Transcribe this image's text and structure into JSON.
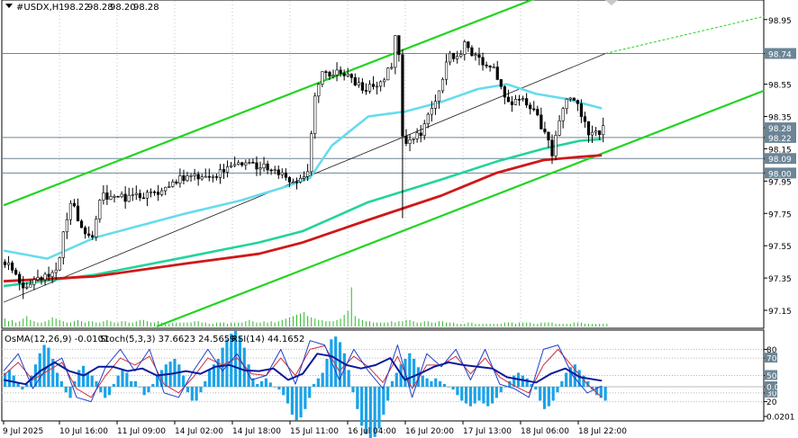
{
  "header": {
    "symbol": "#USDX,H1",
    "open": "98.22",
    "high": "98.28",
    "low": "98.20",
    "close": "98.28"
  },
  "indicator_header": {
    "osma": "OsMA(12,26,9) -0.0101",
    "stoch": "Stoch(5,3,3) 37.6623 24.5659",
    "rsi": "RSI(14) 44.1652"
  },
  "colors": {
    "channel": "#22d422",
    "ma_fast": "#66dbee",
    "ma_mid": "#22d49a",
    "ma_slow": "#d01818",
    "hist": "#1aa3e8",
    "stoch_main": "#1f3fc8",
    "stoch_signal": "#d0303c",
    "rsi": "#0a1a9a",
    "level_line": "#6b8596",
    "badge_bg": "#6b8596",
    "badge_text": "#ffffff"
  },
  "chart_data": {
    "type": "candlestick",
    "price_range": [
      97.05,
      99.06
    ],
    "price_ticks": [
      "98.95",
      "98.74",
      "98.55",
      "98.35",
      "98.28",
      "98.22",
      "98.15",
      "98.09",
      "98.00",
      "97.95",
      "97.75",
      "97.55",
      "97.35",
      "97.15"
    ],
    "price_badges": [
      "98.74",
      "98.28",
      "98.22",
      "98.09",
      "98.00"
    ],
    "level_lines": [
      98.74,
      98.22,
      98.09,
      98.0
    ],
    "time_labels": [
      "9 Jul 2025",
      "10 Jul 16:00",
      "11 Jul 09:00",
      "14 Jul 02:00",
      "14 Jul 18:00",
      "15 Jul 11:00",
      "16 Jul 04:00",
      "16 Jul 20:00",
      "17 Jul 13:00",
      "18 Jul 06:00",
      "18 Jul 22:00"
    ],
    "bars": 165,
    "close_path": [
      [
        0,
        97.45
      ],
      [
        5,
        97.31
      ],
      [
        10,
        97.34
      ],
      [
        14,
        97.38
      ],
      [
        16,
        97.62
      ],
      [
        18,
        97.82
      ],
      [
        21,
        97.68
      ],
      [
        24,
        97.58
      ],
      [
        26,
        97.85
      ],
      [
        30,
        97.86
      ],
      [
        34,
        97.84
      ],
      [
        38,
        97.86
      ],
      [
        42,
        97.86
      ],
      [
        46,
        97.95
      ],
      [
        50,
        97.97
      ],
      [
        54,
        97.98
      ],
      [
        58,
        97.99
      ],
      [
        62,
        98.07
      ],
      [
        66,
        98.06
      ],
      [
        70,
        98.04
      ],
      [
        74,
        98.01
      ],
      [
        78,
        97.96
      ],
      [
        80,
        97.93
      ],
      [
        83,
        97.99
      ],
      [
        85,
        98.5
      ],
      [
        87,
        98.62
      ],
      [
        90,
        98.62
      ],
      [
        94,
        98.6
      ],
      [
        98,
        98.52
      ],
      [
        102,
        98.55
      ],
      [
        106,
        98.65
      ],
      [
        107,
        98.85
      ],
      [
        108,
        98.72
      ],
      [
        109,
        98.25
      ],
      [
        110,
        98.2
      ],
      [
        112,
        98.22
      ],
      [
        114,
        98.24
      ],
      [
        118,
        98.45
      ],
      [
        122,
        98.75
      ],
      [
        124,
        98.7
      ],
      [
        126,
        98.8
      ],
      [
        130,
        98.7
      ],
      [
        134,
        98.65
      ],
      [
        138,
        98.42
      ],
      [
        142,
        98.45
      ],
      [
        145,
        98.38
      ],
      [
        148,
        98.25
      ],
      [
        150,
        98.12
      ],
      [
        152,
        98.3
      ],
      [
        154,
        98.47
      ],
      [
        156,
        98.45
      ],
      [
        158,
        98.36
      ],
      [
        160,
        98.25
      ],
      [
        162,
        98.24
      ],
      [
        164,
        98.28
      ]
    ],
    "moving_averages": [
      {
        "name": "fast",
        "values": [
          [
            0,
            97.52
          ],
          [
            12,
            97.47
          ],
          [
            25,
            97.6
          ],
          [
            50,
            97.75
          ],
          [
            65,
            97.83
          ],
          [
            78,
            97.92
          ],
          [
            84,
            97.97
          ],
          [
            90,
            98.17
          ],
          [
            100,
            98.35
          ],
          [
            110,
            98.38
          ],
          [
            120,
            98.44
          ],
          [
            130,
            98.52
          ],
          [
            138,
            98.55
          ],
          [
            146,
            98.49
          ],
          [
            154,
            98.46
          ],
          [
            164,
            98.4
          ]
        ]
      },
      {
        "name": "mid",
        "values": [
          [
            0,
            97.3
          ],
          [
            25,
            97.37
          ],
          [
            50,
            97.48
          ],
          [
            70,
            97.57
          ],
          [
            82,
            97.64
          ],
          [
            100,
            97.82
          ],
          [
            120,
            97.96
          ],
          [
            135,
            98.07
          ],
          [
            148,
            98.15
          ],
          [
            158,
            98.2
          ],
          [
            164,
            98.21
          ]
        ]
      },
      {
        "name": "slow",
        "values": [
          [
            0,
            97.33
          ],
          [
            25,
            97.36
          ],
          [
            50,
            97.44
          ],
          [
            70,
            97.5
          ],
          [
            82,
            97.57
          ],
          [
            100,
            97.71
          ],
          [
            120,
            97.86
          ],
          [
            135,
            98.0
          ],
          [
            148,
            98.08
          ],
          [
            158,
            98.1
          ],
          [
            164,
            98.11
          ]
        ]
      }
    ],
    "channel_lines": [
      {
        "name": "upper",
        "points": [
          [
            0,
            97.8
          ],
          [
            148,
            99.1
          ]
        ]
      },
      {
        "name": "lower",
        "points": [
          [
            42,
            97.05
          ],
          [
            213,
            98.55
          ]
        ]
      },
      {
        "name": "middle",
        "points": [
          [
            0,
            97.2
          ],
          [
            164,
            98.74
          ]
        ]
      }
    ],
    "oscillator_ticks": [
      "80",
      "70",
      "50",
      "30",
      "20",
      "0.00",
      "0.0201"
    ],
    "osma_values": [
      0.01,
      0.012,
      0.008,
      0.003,
      -0.002,
      0.002,
      0.008,
      0.016,
      0.024,
      0.03,
      0.028,
      0.02,
      0.01,
      0.004,
      -0.004,
      -0.008,
      0.004,
      0.012,
      0.015,
      0.01,
      0.008,
      0.004,
      -0.004,
      -0.008,
      -0.006,
      0.002,
      0.008,
      0.012,
      0.01,
      0.004,
      0.004,
      0.0,
      -0.006,
      -0.004,
      0.002,
      0.008,
      0.012,
      0.016,
      0.018,
      0.02,
      0.016,
      0.008,
      -0.004,
      -0.01,
      -0.01,
      -0.004,
      0.004,
      0.012,
      0.016,
      0.02,
      0.028,
      0.034,
      0.038,
      0.04,
      0.036,
      0.028,
      0.016,
      0.006,
      0.002,
      0.004,
      0.006,
      0.003,
      0.0,
      -0.002,
      -0.006,
      -0.012,
      -0.02,
      -0.024,
      -0.022,
      -0.016,
      -0.008,
      0.002,
      0.006,
      0.01,
      0.02,
      0.034,
      0.036,
      0.032,
      0.024,
      0.012,
      -0.004,
      -0.016,
      -0.028,
      -0.034,
      -0.038,
      -0.036,
      -0.03,
      -0.02,
      -0.01,
      0.004,
      0.01,
      0.016,
      0.02,
      0.024,
      0.02,
      0.014,
      0.008,
      0.006,
      0.004,
      0.006,
      0.004,
      0.002,
      0.0,
      -0.002,
      -0.006,
      -0.01,
      -0.012,
      -0.014,
      -0.012,
      -0.01,
      -0.012,
      -0.014,
      -0.012,
      -0.008,
      -0.004,
      0.0,
      0.004,
      0.008,
      0.01,
      0.008,
      0.006,
      0.002,
      -0.002,
      -0.01,
      -0.016,
      -0.014,
      -0.01,
      -0.004,
      0.004,
      0.01,
      0.014,
      0.016,
      0.012,
      0.008,
      0.004,
      -0.002,
      -0.006,
      -0.008,
      -0.01
    ],
    "stoch_main": [
      [
        0,
        55
      ],
      [
        4,
        75
      ],
      [
        8,
        35
      ],
      [
        12,
        60
      ],
      [
        16,
        70
      ],
      [
        20,
        25
      ],
      [
        24,
        20
      ],
      [
        28,
        60
      ],
      [
        32,
        80
      ],
      [
        36,
        55
      ],
      [
        40,
        80
      ],
      [
        44,
        30
      ],
      [
        48,
        25
      ],
      [
        52,
        55
      ],
      [
        56,
        80
      ],
      [
        60,
        55
      ],
      [
        64,
        75
      ],
      [
        68,
        45
      ],
      [
        72,
        50
      ],
      [
        76,
        80
      ],
      [
        80,
        40
      ],
      [
        84,
        90
      ],
      [
        88,
        85
      ],
      [
        92,
        45
      ],
      [
        96,
        80
      ],
      [
        100,
        55
      ],
      [
        104,
        35
      ],
      [
        108,
        85
      ],
      [
        112,
        25
      ],
      [
        116,
        75
      ],
      [
        120,
        60
      ],
      [
        124,
        80
      ],
      [
        128,
        45
      ],
      [
        132,
        80
      ],
      [
        136,
        40
      ],
      [
        140,
        35
      ],
      [
        144,
        25
      ],
      [
        148,
        80
      ],
      [
        152,
        85
      ],
      [
        156,
        50
      ],
      [
        160,
        30
      ],
      [
        164,
        38
      ]
    ],
    "stoch_signal": [
      [
        0,
        50
      ],
      [
        4,
        65
      ],
      [
        8,
        45
      ],
      [
        12,
        55
      ],
      [
        16,
        65
      ],
      [
        20,
        35
      ],
      [
        24,
        25
      ],
      [
        28,
        50
      ],
      [
        32,
        70
      ],
      [
        36,
        62
      ],
      [
        40,
        72
      ],
      [
        44,
        40
      ],
      [
        48,
        30
      ],
      [
        52,
        48
      ],
      [
        56,
        70
      ],
      [
        60,
        62
      ],
      [
        64,
        70
      ],
      [
        68,
        52
      ],
      [
        72,
        50
      ],
      [
        76,
        70
      ],
      [
        80,
        50
      ],
      [
        84,
        80
      ],
      [
        88,
        84
      ],
      [
        92,
        55
      ],
      [
        96,
        72
      ],
      [
        100,
        60
      ],
      [
        104,
        42
      ],
      [
        108,
        72
      ],
      [
        112,
        35
      ],
      [
        116,
        62
      ],
      [
        120,
        62
      ],
      [
        124,
        72
      ],
      [
        128,
        52
      ],
      [
        132,
        70
      ],
      [
        136,
        48
      ],
      [
        140,
        38
      ],
      [
        144,
        30
      ],
      [
        148,
        62
      ],
      [
        152,
        80
      ],
      [
        156,
        60
      ],
      [
        160,
        40
      ],
      [
        164,
        25
      ]
    ],
    "rsi_values": [
      [
        0,
        45
      ],
      [
        6,
        40
      ],
      [
        10,
        55
      ],
      [
        14,
        65
      ],
      [
        18,
        55
      ],
      [
        22,
        50
      ],
      [
        26,
        60
      ],
      [
        30,
        60
      ],
      [
        34,
        55
      ],
      [
        38,
        58
      ],
      [
        42,
        50
      ],
      [
        46,
        52
      ],
      [
        50,
        55
      ],
      [
        54,
        52
      ],
      [
        58,
        60
      ],
      [
        62,
        62
      ],
      [
        66,
        56
      ],
      [
        70,
        55
      ],
      [
        74,
        58
      ],
      [
        78,
        45
      ],
      [
        82,
        52
      ],
      [
        86,
        75
      ],
      [
        90,
        72
      ],
      [
        94,
        62
      ],
      [
        98,
        58
      ],
      [
        102,
        62
      ],
      [
        106,
        70
      ],
      [
        110,
        45
      ],
      [
        114,
        52
      ],
      [
        118,
        60
      ],
      [
        122,
        65
      ],
      [
        126,
        62
      ],
      [
        130,
        60
      ],
      [
        134,
        58
      ],
      [
        138,
        48
      ],
      [
        142,
        45
      ],
      [
        146,
        42
      ],
      [
        150,
        52
      ],
      [
        154,
        58
      ],
      [
        158,
        48
      ],
      [
        164,
        44
      ]
    ],
    "volumes": [
      6,
      4,
      5,
      3,
      4,
      6,
      8,
      5,
      4,
      3,
      3,
      4,
      5,
      7,
      6,
      5,
      4,
      3,
      3,
      4,
      5,
      4,
      3,
      4,
      4,
      3,
      3,
      4,
      5,
      4,
      3,
      3,
      4,
      4,
      3,
      3,
      4,
      5,
      5,
      4,
      3,
      3,
      4,
      3,
      3,
      2,
      3,
      3,
      3,
      3,
      3,
      3,
      4,
      4,
      3,
      3,
      2,
      2,
      3,
      3,
      3,
      2,
      3,
      3,
      3,
      3,
      4,
      5,
      4,
      3,
      3,
      4,
      3,
      4,
      3,
      4,
      5,
      6,
      7,
      8,
      9,
      10,
      11,
      8,
      7,
      6,
      5,
      5,
      4,
      4,
      4,
      5,
      6,
      9,
      12,
      30,
      8,
      6,
      5,
      4,
      4,
      3,
      3,
      3,
      3,
      3,
      4,
      3,
      4,
      4,
      5,
      5,
      4,
      3,
      3,
      4,
      4,
      3,
      3,
      4,
      4,
      3,
      3,
      3,
      2,
      2,
      2,
      3,
      3,
      2,
      2,
      2,
      2,
      2,
      2,
      2,
      2,
      3,
      3,
      3,
      2,
      3,
      3,
      3,
      3,
      2,
      2,
      3,
      3,
      3,
      3,
      2,
      2,
      2,
      2,
      2,
      3,
      3,
      3,
      2,
      2,
      2,
      2,
      2,
      2,
      2
    ]
  }
}
